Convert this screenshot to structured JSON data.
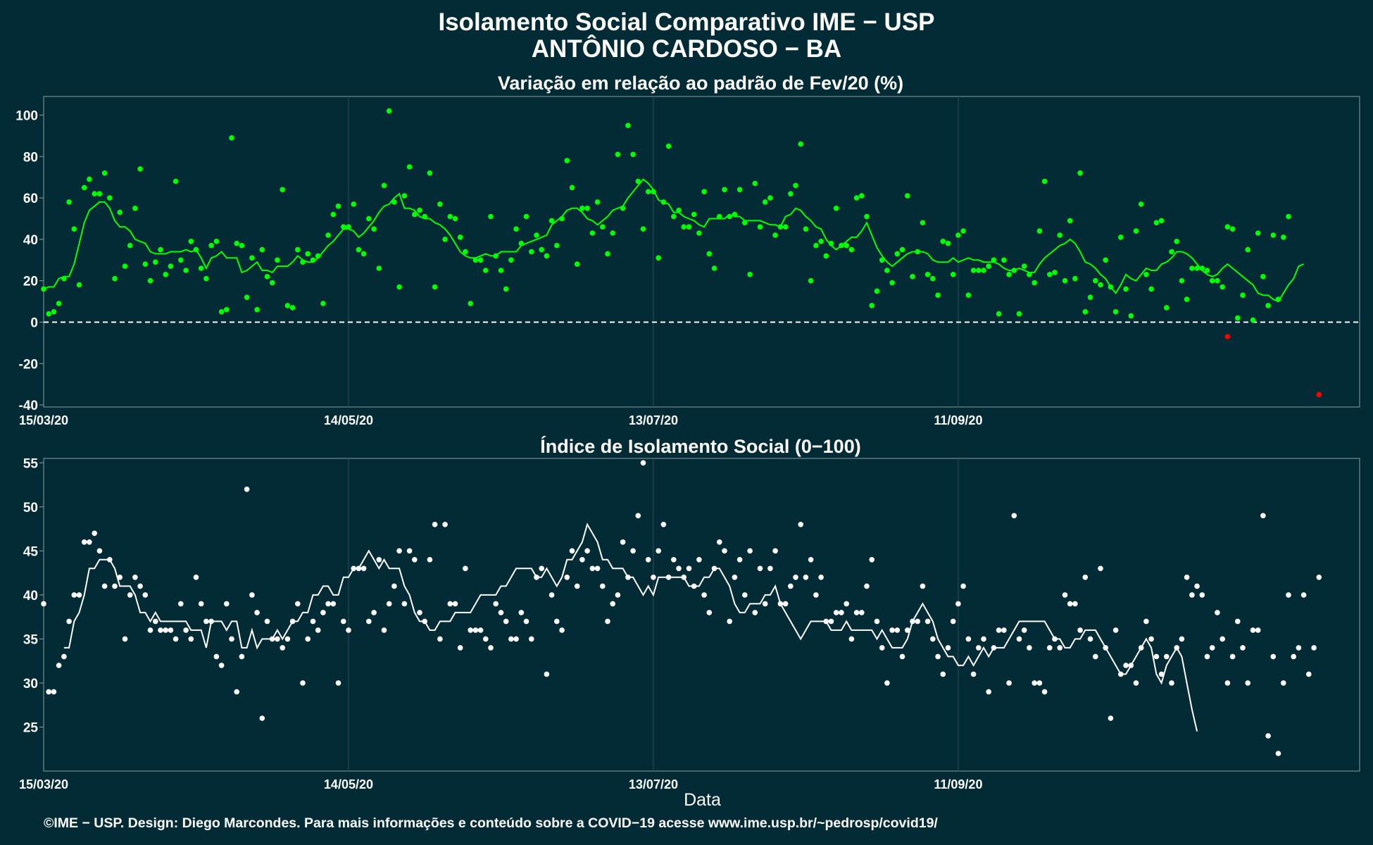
{
  "header": {
    "title_line1": "Isolamento Social Comparativo IME − USP",
    "title_line2": "ANTÔNIO CARDOSO − BA"
  },
  "footer": {
    "credit": "©IME − USP. Design: Diego Marcondes. Para mais informações e conteúdo sobre a COVID−19 acesse www.ime.usp.br/~pedrosp/covid19/"
  },
  "colors": {
    "background": "#022b35",
    "variation_series": "#00ff00",
    "negative_points": "#ff0000",
    "index_series": "#ffffff",
    "grid": "#2f4d56",
    "zero_line": "#ffffff"
  },
  "chart_data": [
    {
      "type": "scatter",
      "title": "Variação em relação ao padrão de Fev/20 (%)",
      "xlabel": "",
      "ylabel": "",
      "x_tick_labels": [
        "15/03/20",
        "14/05/20",
        "13/07/20",
        "11/09/20"
      ],
      "y_ticks": [
        -40,
        -20,
        0,
        20,
        40,
        60,
        80,
        100
      ],
      "xlim": [
        "2020-03-15",
        "2020-11-29"
      ],
      "ylim": [
        -41,
        109
      ],
      "reference_line": 0,
      "grid": true,
      "series": [
        {
          "points_start_date": "2020-03-15",
          "values": [
            16,
            4,
            5,
            9,
            21,
            58,
            45,
            18,
            65,
            69,
            62,
            62,
            72,
            60,
            21,
            53,
            27,
            37,
            55,
            74,
            28,
            20,
            29,
            35,
            23,
            27,
            68,
            30,
            25,
            39,
            35,
            26,
            21,
            37,
            39,
            5,
            6,
            89,
            38,
            37,
            12,
            31,
            6,
            35,
            22,
            19,
            30,
            64,
            8,
            7,
            35,
            29,
            33,
            30,
            32,
            9,
            42,
            52,
            56,
            46,
            46,
            57,
            35,
            33,
            50,
            45,
            26,
            66,
            102,
            58,
            17,
            61,
            75,
            52,
            54,
            51,
            72,
            17,
            57,
            40,
            51,
            50,
            41,
            34,
            9,
            30,
            30,
            25,
            51,
            32,
            25,
            16,
            30,
            45,
            38,
            51,
            34,
            42,
            35,
            32,
            49,
            37,
            50,
            78,
            65,
            28,
            55,
            55,
            43,
            58,
            46,
            33,
            43,
            81,
            55,
            95,
            81,
            68,
            45,
            63,
            63,
            31,
            58,
            85,
            51,
            54,
            46,
            46,
            52,
            43,
            63,
            33,
            26,
            51,
            64,
            51,
            52,
            64,
            48,
            23,
            67,
            46,
            58,
            60,
            42,
            46,
            46,
            62,
            66,
            86,
            45,
            20,
            37,
            39,
            32,
            38,
            55,
            37,
            37,
            35,
            60,
            61,
            51,
            8,
            15,
            30,
            25,
            19,
            33,
            35,
            61,
            22,
            34,
            48,
            23,
            21,
            13,
            39,
            38,
            23,
            42,
            44,
            13,
            25,
            25,
            25,
            27,
            30,
            4,
            30,
            23,
            25,
            4,
            27,
            23,
            19,
            44,
            68,
            23,
            24,
            42,
            20,
            49,
            21,
            72,
            5,
            12,
            20,
            18,
            30,
            17,
            5,
            41,
            16,
            3,
            44,
            57,
            23,
            16,
            48,
            49,
            7,
            34,
            39,
            20,
            11,
            26,
            26,
            26,
            25,
            20,
            20,
            17,
            46,
            45,
            2,
            13,
            35,
            1,
            43,
            22,
            8,
            42,
            11,
            41,
            51
          ]
        },
        {
          "name": "",
          "points_start_date": "2020-11-03",
          "values": [
            -7
          ],
          "color": "#ff0000"
        },
        {
          "name": "",
          "points_start_date": "2020-11-21",
          "values": [
            -35
          ],
          "color": "#ff0000"
        },
        {
          "name": "",
          "type": "line",
          "start_date": "2020-03-15",
          "values": [
            16,
            17,
            17,
            21,
            22,
            22,
            28,
            38,
            48,
            54,
            56,
            58,
            58,
            55,
            49,
            46,
            46,
            44,
            40,
            39,
            38,
            34,
            33,
            33,
            33,
            34,
            34,
            34,
            35,
            34,
            35,
            31,
            26,
            31,
            32,
            34,
            31,
            31,
            31,
            24,
            25,
            27,
            29,
            25,
            25,
            24,
            27,
            27,
            27,
            29,
            32,
            30,
            29,
            29,
            31,
            34,
            37,
            39,
            42,
            45,
            45,
            44,
            41,
            43,
            46,
            49,
            53,
            56,
            57,
            60,
            62,
            55,
            55,
            54,
            51,
            50,
            50,
            48,
            47,
            45,
            42,
            38,
            34,
            32,
            31,
            31,
            32,
            33,
            32,
            32,
            34,
            34,
            34,
            34,
            37,
            38,
            39,
            40,
            41,
            42,
            47,
            49,
            51,
            54,
            55,
            55,
            53,
            50,
            49,
            47,
            49,
            51,
            54,
            55,
            56,
            60,
            63,
            66,
            69,
            67,
            64,
            59,
            58,
            57,
            53,
            53,
            51,
            50,
            49,
            47,
            46,
            50,
            50,
            50,
            50,
            52,
            51,
            51,
            49,
            49,
            49,
            49,
            48,
            47,
            47,
            46,
            51,
            52,
            55,
            54,
            51,
            49,
            46,
            45,
            40,
            37,
            35,
            37,
            39,
            41,
            41,
            44,
            48,
            42,
            36,
            32,
            29,
            27,
            29,
            31,
            33,
            34,
            34,
            34,
            33,
            30,
            29,
            29,
            29,
            31,
            29,
            30,
            31,
            30,
            30,
            29,
            29,
            29,
            28,
            26,
            25,
            25,
            26,
            25,
            24,
            24,
            28,
            31,
            33,
            35,
            37,
            38,
            40,
            38,
            34,
            29,
            28,
            26,
            23,
            21,
            17,
            14,
            18,
            23,
            21,
            20,
            23,
            26,
            25,
            25,
            28,
            29,
            31,
            34,
            34,
            33,
            31,
            28,
            25,
            23,
            22,
            23,
            26,
            28,
            26,
            24,
            22,
            20,
            18,
            14,
            13,
            13,
            11,
            10,
            14,
            18,
            21,
            27,
            28
          ],
          "color": "#00ff00"
        }
      ]
    },
    {
      "type": "scatter",
      "title": "Índice de Isolamento Social (0−100)",
      "xlabel": "Data",
      "ylabel": "",
      "x_tick_labels": [
        "15/03/20",
        "14/05/20",
        "13/07/20",
        "11/09/20"
      ],
      "y_ticks": [
        25,
        30,
        35,
        40,
        45,
        50,
        55
      ],
      "xlim": [
        "2020-03-15",
        "2020-11-29"
      ],
      "ylim": [
        20,
        55.5
      ],
      "grid": true,
      "series": [
        {
          "points_start_date": "2020-03-15",
          "values": [
            39,
            29,
            29,
            32,
            33,
            37,
            40,
            40,
            46,
            46,
            47,
            45,
            41,
            44,
            41,
            42,
            35,
            40,
            42,
            41,
            40,
            36,
            37,
            36,
            36,
            36,
            35,
            39,
            36,
            35,
            42,
            39,
            37,
            37,
            33,
            32,
            39,
            35,
            29,
            33,
            52,
            40,
            38,
            26,
            37,
            35,
            35,
            34,
            35,
            37,
            39,
            30,
            35,
            37,
            36,
            38,
            39,
            39,
            30,
            37,
            36,
            43,
            43,
            43,
            37,
            38,
            44,
            36,
            39,
            41,
            45,
            39,
            45,
            44,
            38,
            37,
            44,
            48,
            35,
            48,
            39,
            39,
            34,
            43,
            36,
            36,
            36,
            35,
            34,
            39,
            38,
            37,
            35,
            35,
            38,
            37,
            35,
            42,
            43,
            31,
            40,
            37,
            36,
            42,
            45,
            41,
            44,
            45,
            43,
            43,
            41,
            37,
            39,
            40,
            46,
            42,
            45,
            49,
            55,
            44,
            42,
            45,
            48,
            42,
            44,
            43,
            42,
            43,
            41,
            44,
            40,
            38,
            43,
            46,
            45,
            37,
            42,
            44,
            40,
            45,
            38,
            43,
            39,
            43,
            45,
            39,
            39,
            41,
            42,
            48,
            42,
            44,
            40,
            42,
            37,
            37,
            38,
            38,
            39,
            35,
            38,
            38,
            41,
            44,
            37,
            34,
            30,
            36,
            36,
            33,
            36,
            37,
            37,
            41,
            37,
            35,
            33,
            31,
            34,
            37,
            39,
            41,
            35,
            31,
            34,
            35,
            29,
            34,
            36,
            36,
            30,
            49,
            35,
            36,
            34,
            30,
            30,
            29,
            34,
            35,
            34,
            40,
            39,
            39,
            36,
            42,
            35,
            33,
            43,
            34,
            26,
            36,
            31,
            32,
            32,
            30,
            34,
            37,
            35,
            33,
            31,
            33,
            30,
            34,
            35,
            42,
            40,
            41,
            40,
            33,
            34,
            38,
            35,
            30,
            33,
            37,
            34,
            30,
            36,
            36,
            49,
            24,
            33,
            22,
            30,
            40,
            33,
            34,
            40,
            31,
            34,
            42
          ]
        },
        {
          "name": "",
          "type": "line",
          "start_date": "2020-03-19",
          "values": [
            34,
            34,
            37,
            38,
            40,
            43,
            43,
            44,
            44,
            44,
            43,
            41,
            41,
            41,
            40,
            38,
            38,
            37,
            38,
            37,
            37,
            37,
            37,
            37,
            37,
            36,
            36,
            36,
            34,
            37,
            37,
            37,
            36,
            37,
            37,
            34,
            34,
            36,
            34,
            35,
            35,
            35,
            36,
            35,
            36,
            37,
            37,
            38,
            38,
            40,
            40,
            41,
            41,
            40,
            40,
            42,
            42,
            43,
            43,
            44,
            45,
            44,
            43,
            44,
            43,
            43,
            43,
            41,
            40,
            38,
            37,
            37,
            36,
            36,
            37,
            37,
            37,
            38,
            38,
            38,
            38,
            39,
            40,
            40,
            40,
            40,
            41,
            41,
            42,
            43,
            43,
            43,
            43,
            42,
            42,
            43,
            42,
            41,
            42,
            44,
            44,
            45,
            46,
            48,
            47,
            46,
            44,
            44,
            43,
            43,
            43,
            42,
            42,
            41,
            40,
            41,
            40,
            42,
            42,
            42,
            42,
            42,
            42,
            41,
            41,
            41,
            42,
            42,
            43,
            43,
            42,
            41,
            39,
            38,
            38,
            39,
            39,
            39,
            40,
            40,
            41,
            39,
            38,
            37,
            36,
            35,
            36,
            37,
            37,
            37,
            37,
            36,
            36,
            36,
            37,
            36,
            36,
            36,
            36,
            36,
            35,
            36,
            35,
            34,
            34,
            34,
            35,
            37,
            38,
            39,
            38,
            37,
            35,
            34,
            33,
            33,
            32,
            32,
            33,
            32,
            33,
            34,
            33,
            34,
            34,
            34,
            35,
            36,
            37,
            37,
            37,
            37,
            37,
            37,
            36,
            35,
            35,
            34,
            34,
            35,
            35,
            36,
            36,
            36,
            35,
            34,
            33,
            32,
            31,
            31,
            32,
            33,
            34,
            35,
            34,
            31,
            30,
            32,
            33,
            34,
            33,
            30,
            27,
            24.5
          ],
          "color": "#ffffff"
        }
      ]
    }
  ]
}
